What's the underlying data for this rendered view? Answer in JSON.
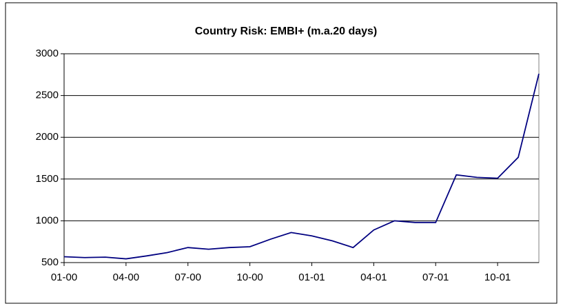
{
  "chart_data": {
    "type": "line",
    "title": "Country Risk: EMBI+ (m.a.20 days)",
    "x": [
      "2000-01",
      "2000-02",
      "2000-03",
      "2000-04",
      "2000-05",
      "2000-06",
      "2000-07",
      "2000-08",
      "2000-09",
      "2000-10",
      "2000-11",
      "2000-12",
      "2001-01",
      "2001-02",
      "2001-03",
      "2001-04",
      "2001-05",
      "2001-06",
      "2001-07",
      "2001-08",
      "2001-09",
      "2001-10",
      "2001-11",
      "2001-12"
    ],
    "series": [
      {
        "name": "EMBI+",
        "color": "#000080",
        "values": [
          570,
          560,
          565,
          545,
          580,
          620,
          680,
          660,
          680,
          690,
          780,
          860,
          820,
          760,
          680,
          890,
          1000,
          980,
          980,
          1550,
          1520,
          1510,
          1760,
          2760
        ]
      }
    ],
    "xlim": [
      "2000-01",
      "2001-12"
    ],
    "xticks": [
      {
        "value": "2000-01",
        "label": "01-00"
      },
      {
        "value": "2000-04",
        "label": "04-00"
      },
      {
        "value": "2000-07",
        "label": "07-00"
      },
      {
        "value": "2000-10",
        "label": "10-00"
      },
      {
        "value": "2001-01",
        "label": "01-01"
      },
      {
        "value": "2001-04",
        "label": "04-01"
      },
      {
        "value": "2001-07",
        "label": "07-01"
      },
      {
        "value": "2001-10",
        "label": "10-01"
      }
    ],
    "ylim": [
      500,
      3000
    ],
    "yticks": [
      500,
      1000,
      1500,
      2000,
      2500,
      3000
    ],
    "grid": true
  }
}
